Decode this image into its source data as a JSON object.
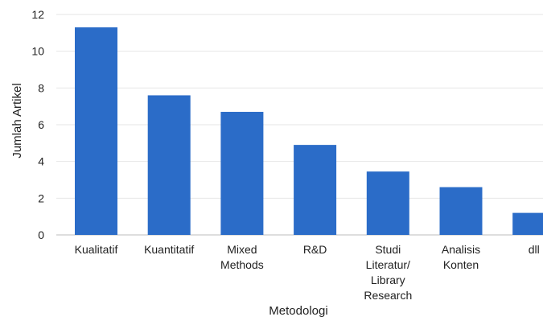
{
  "chart_data": {
    "type": "bar",
    "categories": [
      [
        "Kualitatif"
      ],
      [
        "Kuantitatif"
      ],
      [
        "Mixed",
        "Methods"
      ],
      [
        "R&D"
      ],
      [
        "Studi",
        "Literatur/",
        "Library",
        "Research"
      ],
      [
        "Analisis",
        "Konten"
      ],
      [
        "dll"
      ]
    ],
    "values": [
      11.3,
      7.6,
      6.7,
      4.9,
      3.45,
      2.6,
      1.2
    ],
    "xlabel": "Metodologi",
    "ylabel": "Jumlah Artikel",
    "ylim": [
      0,
      12
    ],
    "yticks": [
      0,
      2,
      4,
      6,
      8,
      10,
      12
    ],
    "grid": true,
    "bar_color": "#2b6cc8"
  }
}
